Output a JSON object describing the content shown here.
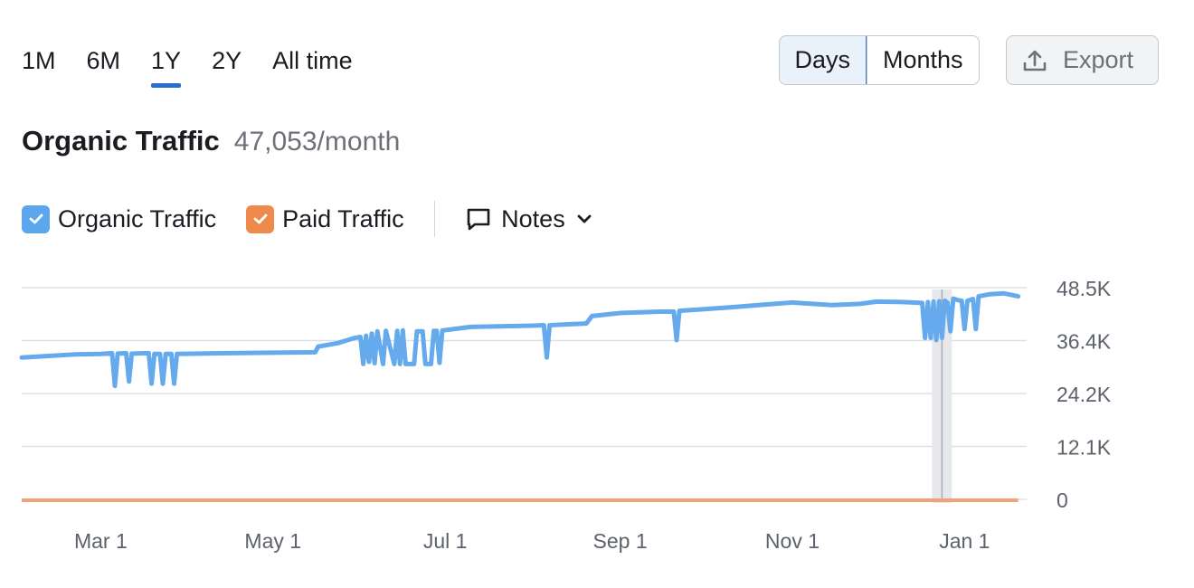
{
  "range_tabs": [
    {
      "label": "1M",
      "active": false
    },
    {
      "label": "6M",
      "active": false
    },
    {
      "label": "1Y",
      "active": true
    },
    {
      "label": "2Y",
      "active": false
    },
    {
      "label": "All time",
      "active": false
    }
  ],
  "granularity": {
    "days_label": "Days",
    "months_label": "Months",
    "selected": "Days"
  },
  "export_label": "Export",
  "header": {
    "title": "Organic Traffic",
    "value": "47,053/month"
  },
  "legend": {
    "items": [
      {
        "label": "Organic Traffic",
        "color": "#5aa7ee",
        "checked": true
      },
      {
        "label": "Paid Traffic",
        "color": "#ee8a4b",
        "checked": true
      }
    ],
    "notes_label": "Notes"
  },
  "colors": {
    "accent": "#2b6cd1",
    "organic": "#64aaec",
    "paid": "#f0a27a",
    "grid": "#dde0e6"
  },
  "chart_data": {
    "type": "line",
    "x_tick_labels": [
      "Mar 1",
      "May 1",
      "Jul 1",
      "Sep 1",
      "Nov 1",
      "Jan 1"
    ],
    "y_tick_labels": [
      "48.5K",
      "36.4K",
      "24.2K",
      "12.1K",
      "0"
    ],
    "ylim": [
      0,
      48500
    ],
    "grid": true,
    "x_range": [
      "Feb",
      "Jan"
    ],
    "highlighted_date": "Dec 24",
    "series": [
      {
        "name": "Organic Traffic",
        "x_unit": "date",
        "points": [
          [
            "Feb 1",
            32500
          ],
          [
            "Feb 20",
            33200
          ],
          [
            "Mar 1",
            33300
          ],
          [
            "Mar 5",
            33500
          ],
          [
            "Mar 6",
            26000
          ],
          [
            "Mar 7",
            33400
          ],
          [
            "Mar 10",
            33500
          ],
          [
            "Mar 11",
            27000
          ],
          [
            "Mar 12",
            33400
          ],
          [
            "Mar 18",
            33500
          ],
          [
            "Mar 19",
            26500
          ],
          [
            "Mar 20",
            33300
          ],
          [
            "Mar 22",
            33300
          ],
          [
            "Mar 23",
            26500
          ],
          [
            "Mar 24",
            33300
          ],
          [
            "Mar 26",
            33300
          ],
          [
            "Mar 27",
            26500
          ],
          [
            "Mar 28",
            33300
          ],
          [
            "Apr 15",
            33500
          ],
          [
            "May 1",
            33600
          ],
          [
            "May 16",
            33700
          ],
          [
            "May 17",
            35000
          ],
          [
            "May 24",
            35800
          ],
          [
            "May 30",
            37000
          ],
          [
            "Jun 1",
            37200
          ],
          [
            "Jun 2",
            31000
          ],
          [
            "Jun 3",
            37500
          ],
          [
            "Jun 4",
            31500
          ],
          [
            "Jun 5",
            38000
          ],
          [
            "Jun 6",
            31200
          ],
          [
            "Jun 7",
            38500
          ],
          [
            "Jun 9",
            31000
          ],
          [
            "Jun 10",
            38600
          ],
          [
            "Jun 13",
            31000
          ],
          [
            "Jun 14",
            38600
          ],
          [
            "Jun 15",
            31000
          ],
          [
            "Jun 16",
            38700
          ],
          [
            "Jun 17",
            31000
          ],
          [
            "Jun 20",
            31000
          ],
          [
            "Jun 21",
            38500
          ],
          [
            "Jun 23",
            38500
          ],
          [
            "Jun 24",
            31000
          ],
          [
            "Jun 26",
            31000
          ],
          [
            "Jun 27",
            38600
          ],
          [
            "Jun 28",
            38600
          ],
          [
            "Jun 29",
            31300
          ],
          [
            "Jun 30",
            38700
          ],
          [
            "Jul 10",
            39500
          ],
          [
            "Aug 1",
            39800
          ],
          [
            "Aug 5",
            39900
          ],
          [
            "Aug 6",
            32500
          ],
          [
            "Aug 7",
            39900
          ],
          [
            "Aug 20",
            40300
          ],
          [
            "Aug 22",
            42000
          ],
          [
            "Sep 1",
            42700
          ],
          [
            "Sep 15",
            43000
          ],
          [
            "Sep 20",
            43000
          ],
          [
            "Sep 21",
            36500
          ],
          [
            "Sep 22",
            43200
          ],
          [
            "Oct 10",
            44000
          ],
          [
            "Oct 20",
            44500
          ],
          [
            "Nov 1",
            45100
          ],
          [
            "Nov 15",
            44500
          ],
          [
            "Nov 25",
            44800
          ],
          [
            "Dec 1",
            45300
          ],
          [
            "Dec 10",
            45200
          ],
          [
            "Dec 17",
            45000
          ],
          [
            "Dec 18",
            37000
          ],
          [
            "Dec 19",
            45200
          ],
          [
            "Dec 20",
            37000
          ],
          [
            "Dec 21",
            45300
          ],
          [
            "Dec 22",
            36500
          ],
          [
            "Dec 23",
            45400
          ],
          [
            "Dec 24",
            37000
          ],
          [
            "Dec 25",
            45500
          ],
          [
            "Dec 26",
            45000
          ],
          [
            "Dec 27",
            38500
          ],
          [
            "Dec 28",
            46000
          ],
          [
            "Dec 30",
            45600
          ],
          [
            "Dec 31",
            45500
          ],
          [
            "Jan 1",
            39000
          ],
          [
            "Jan 2",
            45500
          ],
          [
            "Jan 4",
            45900
          ],
          [
            "Jan 5",
            39000
          ],
          [
            "Jan 6",
            46500
          ],
          [
            "Jan 10",
            47000
          ],
          [
            "Jan 15",
            47200
          ],
          [
            "Jan 20",
            46500
          ]
        ]
      },
      {
        "name": "Paid Traffic",
        "x_unit": "date",
        "points": [
          [
            "Feb 1",
            0
          ],
          [
            "Jan 20",
            0
          ]
        ]
      }
    ]
  }
}
